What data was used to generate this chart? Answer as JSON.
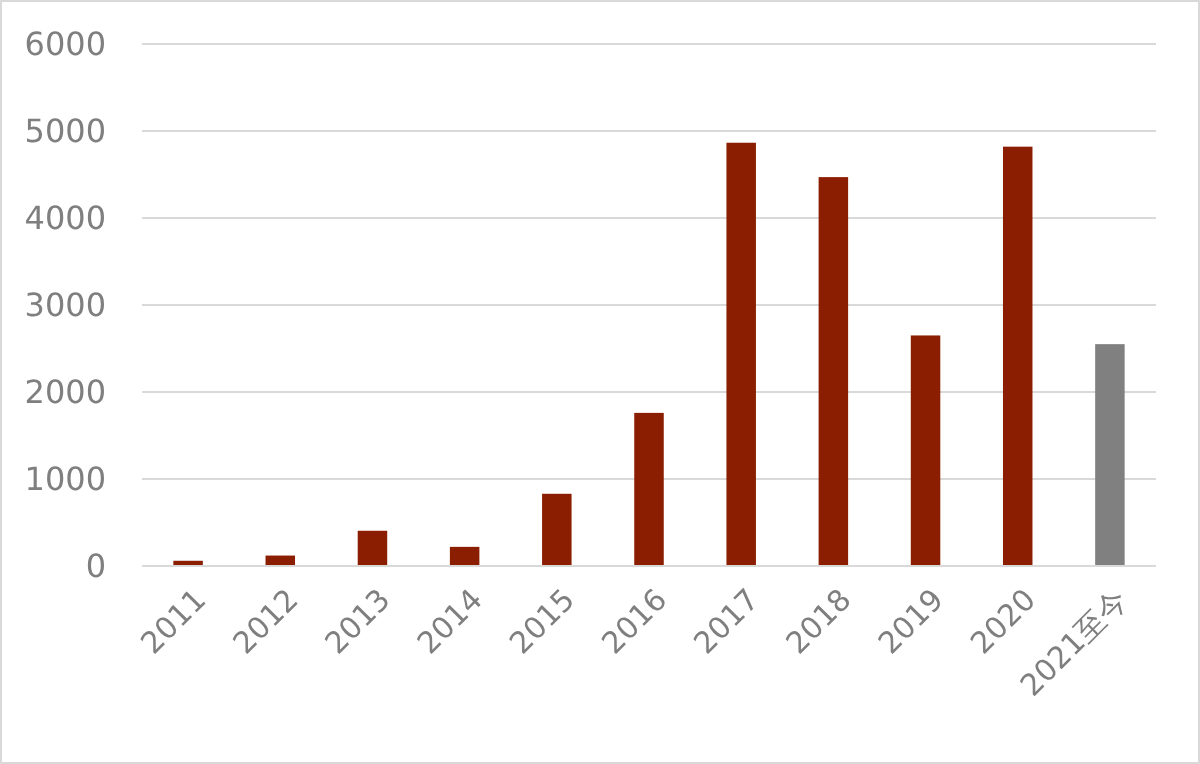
{
  "chart_data": {
    "type": "bar",
    "categories": [
      "2011",
      "2012",
      "2013",
      "2014",
      "2015",
      "2016",
      "2017",
      "2018",
      "2019",
      "2020",
      "2021至今"
    ],
    "values": [
      60,
      120,
      405,
      220,
      830,
      1760,
      4865,
      4470,
      2650,
      4820,
      2550
    ],
    "colors": [
      "#8b1e00",
      "#8b1e00",
      "#8b1e00",
      "#8b1e00",
      "#8b1e00",
      "#8b1e00",
      "#8b1e00",
      "#8b1e00",
      "#8b1e00",
      "#8b1e00",
      "#808080"
    ],
    "ylim": [
      0,
      6000
    ],
    "yticks": [
      0,
      1000,
      2000,
      3000,
      4000,
      5000,
      6000
    ],
    "grid": "y"
  }
}
